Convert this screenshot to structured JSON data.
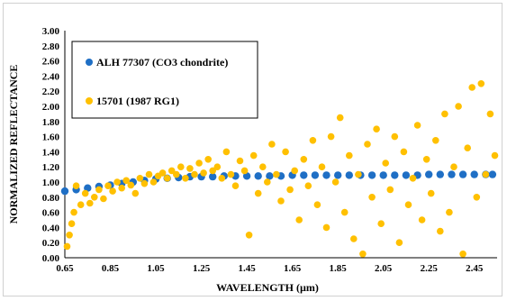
{
  "chart_data": {
    "type": "scatter",
    "title": "",
    "xlabel": "WAVELENGTH (µm)",
    "ylabel": "NORMALIZED REFLECTANCE",
    "xlim": [
      0.65,
      2.55
    ],
    "ylim": [
      0.0,
      3.0
    ],
    "x_ticks": [
      "0.65",
      "0.85",
      "1.05",
      "1.25",
      "1.45",
      "1.65",
      "1.85",
      "2.05",
      "2.25",
      "2.45"
    ],
    "y_ticks": [
      "0.00",
      "0.20",
      "0.40",
      "0.60",
      "0.80",
      "1.00",
      "1.20",
      "1.40",
      "1.60",
      "1.80",
      "2.00",
      "2.20",
      "2.40",
      "2.60",
      "2.80",
      "3.00"
    ],
    "grid": false,
    "legend_position": "top-left",
    "series": [
      {
        "name": "ALH 77307 (CO3 chondrite)",
        "color": "#1f6fc5",
        "points": [
          [
            0.65,
            0.88
          ],
          [
            0.7,
            0.9
          ],
          [
            0.75,
            0.92
          ],
          [
            0.8,
            0.94
          ],
          [
            0.85,
            0.96
          ],
          [
            0.9,
            0.98
          ],
          [
            0.95,
            1.0
          ],
          [
            1.0,
            1.02
          ],
          [
            1.05,
            1.04
          ],
          [
            1.1,
            1.05
          ],
          [
            1.15,
            1.06
          ],
          [
            1.2,
            1.07
          ],
          [
            1.25,
            1.07
          ],
          [
            1.3,
            1.07
          ],
          [
            1.35,
            1.08
          ],
          [
            1.4,
            1.08
          ],
          [
            1.45,
            1.08
          ],
          [
            1.5,
            1.08
          ],
          [
            1.55,
            1.08
          ],
          [
            1.6,
            1.08
          ],
          [
            1.65,
            1.09
          ],
          [
            1.7,
            1.09
          ],
          [
            1.75,
            1.09
          ],
          [
            1.8,
            1.09
          ],
          [
            1.85,
            1.09
          ],
          [
            1.9,
            1.09
          ],
          [
            1.95,
            1.09
          ],
          [
            2.0,
            1.09
          ],
          [
            2.05,
            1.09
          ],
          [
            2.1,
            1.09
          ],
          [
            2.15,
            1.09
          ],
          [
            2.2,
            1.09
          ],
          [
            2.25,
            1.1
          ],
          [
            2.3,
            1.1
          ],
          [
            2.35,
            1.1
          ],
          [
            2.4,
            1.1
          ],
          [
            2.45,
            1.1
          ],
          [
            2.5,
            1.1
          ],
          [
            2.53,
            1.1
          ]
        ]
      },
      {
        "name": "15701 (1987 RG1)",
        "color": "#ffc000",
        "points": [
          [
            0.66,
            0.15
          ],
          [
            0.67,
            0.3
          ],
          [
            0.68,
            0.45
          ],
          [
            0.69,
            0.6
          ],
          [
            0.7,
            0.95
          ],
          [
            0.72,
            0.7
          ],
          [
            0.74,
            0.85
          ],
          [
            0.76,
            0.72
          ],
          [
            0.78,
            0.8
          ],
          [
            0.8,
            0.9
          ],
          [
            0.82,
            0.78
          ],
          [
            0.84,
            0.95
          ],
          [
            0.86,
            0.88
          ],
          [
            0.88,
            1.0
          ],
          [
            0.9,
            0.92
          ],
          [
            0.92,
            1.02
          ],
          [
            0.94,
            0.96
          ],
          [
            0.96,
            0.85
          ],
          [
            0.98,
            1.05
          ],
          [
            1.0,
            0.98
          ],
          [
            1.02,
            1.1
          ],
          [
            1.04,
            1.0
          ],
          [
            1.06,
            1.08
          ],
          [
            1.08,
            1.12
          ],
          [
            1.1,
            1.05
          ],
          [
            1.12,
            1.15
          ],
          [
            1.14,
            1.1
          ],
          [
            1.16,
            1.2
          ],
          [
            1.18,
            1.05
          ],
          [
            1.2,
            1.18
          ],
          [
            1.22,
            1.1
          ],
          [
            1.24,
            1.25
          ],
          [
            1.26,
            1.12
          ],
          [
            1.28,
            1.3
          ],
          [
            1.3,
            1.15
          ],
          [
            1.32,
            1.2
          ],
          [
            1.34,
            1.05
          ],
          [
            1.36,
            1.4
          ],
          [
            1.38,
            1.1
          ],
          [
            1.4,
            0.95
          ],
          [
            1.42,
            1.28
          ],
          [
            1.44,
            1.15
          ],
          [
            1.46,
            0.3
          ],
          [
            1.48,
            1.35
          ],
          [
            1.5,
            0.85
          ],
          [
            1.52,
            1.2
          ],
          [
            1.54,
            1.0
          ],
          [
            1.56,
            1.5
          ],
          [
            1.58,
            1.1
          ],
          [
            1.6,
            0.75
          ],
          [
            1.62,
            1.4
          ],
          [
            1.64,
            0.9
          ],
          [
            1.66,
            1.15
          ],
          [
            1.68,
            0.5
          ],
          [
            1.7,
            1.3
          ],
          [
            1.72,
            0.95
          ],
          [
            1.74,
            1.55
          ],
          [
            1.76,
            0.7
          ],
          [
            1.78,
            1.2
          ],
          [
            1.8,
            0.4
          ],
          [
            1.82,
            1.6
          ],
          [
            1.84,
            1.0
          ],
          [
            1.86,
            1.85
          ],
          [
            1.88,
            0.6
          ],
          [
            1.9,
            1.35
          ],
          [
            1.92,
            0.25
          ],
          [
            1.94,
            1.1
          ],
          [
            1.96,
            0.05
          ],
          [
            1.98,
            1.5
          ],
          [
            2.0,
            0.8
          ],
          [
            2.02,
            1.7
          ],
          [
            2.04,
            0.45
          ],
          [
            2.06,
            1.25
          ],
          [
            2.08,
            0.9
          ],
          [
            2.1,
            1.6
          ],
          [
            2.12,
            0.2
          ],
          [
            2.14,
            1.4
          ],
          [
            2.16,
            0.7
          ],
          [
            2.18,
            1.05
          ],
          [
            2.2,
            1.75
          ],
          [
            2.22,
            0.5
          ],
          [
            2.24,
            1.3
          ],
          [
            2.26,
            0.85
          ],
          [
            2.28,
            1.55
          ],
          [
            2.3,
            0.35
          ],
          [
            2.32,
            1.9
          ],
          [
            2.34,
            0.6
          ],
          [
            2.36,
            1.2
          ],
          [
            2.38,
            2.0
          ],
          [
            2.4,
            0.05
          ],
          [
            2.42,
            1.45
          ],
          [
            2.44,
            2.25
          ],
          [
            2.46,
            0.8
          ],
          [
            2.48,
            2.3
          ],
          [
            2.5,
            1.1
          ],
          [
            2.52,
            1.9
          ],
          [
            2.54,
            1.35
          ]
        ]
      }
    ]
  }
}
